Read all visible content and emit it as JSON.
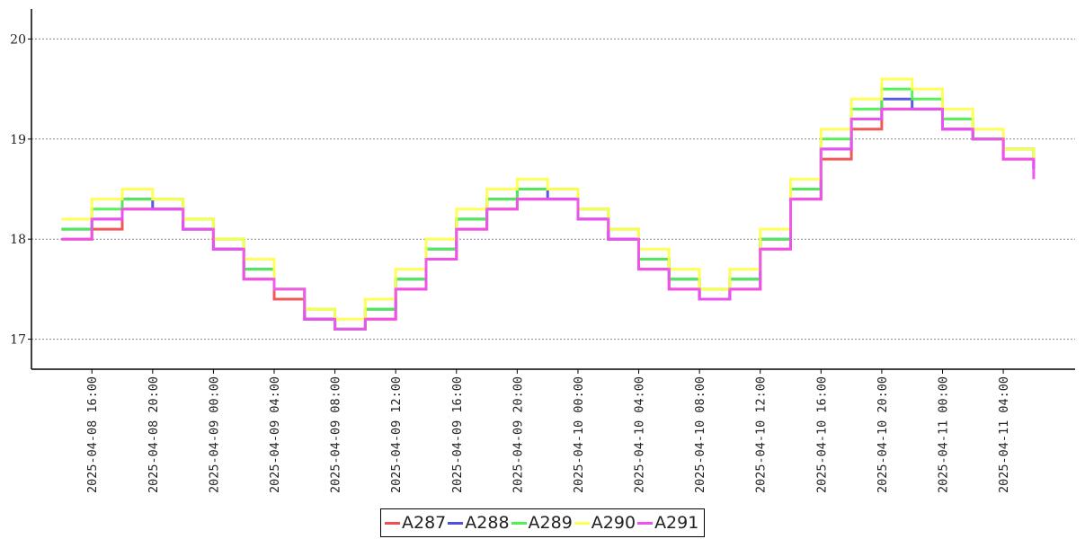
{
  "chart_data": {
    "type": "line",
    "step": true,
    "title": "",
    "xlabel": "",
    "ylabel": "",
    "x_start": "2025-04-08 13:30",
    "x_end": "2025-04-11 07:15",
    "x_tick_labels": [
      "2025-04-08 16:00",
      "2025-04-08 20:00",
      "2025-04-09 00:00",
      "2025-04-09 04:00",
      "2025-04-09 08:00",
      "2025-04-09 12:00",
      "2025-04-09 16:00",
      "2025-04-09 20:00",
      "2025-04-10 00:00",
      "2025-04-10 04:00",
      "2025-04-10 08:00",
      "2025-04-10 12:00",
      "2025-04-10 16:00",
      "2025-04-10 20:00",
      "2025-04-11 00:00",
      "2025-04-11 04:00"
    ],
    "y_ticks": [
      17,
      18,
      19,
      20
    ],
    "ylim": [
      16.7,
      20.3
    ],
    "grid": "horizontal dotted",
    "legend_position": "bottom-center",
    "x": [
      "2025-04-08 14:00",
      "2025-04-08 16:00",
      "2025-04-08 18:00",
      "2025-04-08 20:00",
      "2025-04-08 22:00",
      "2025-04-09 00:00",
      "2025-04-09 02:00",
      "2025-04-09 04:00",
      "2025-04-09 06:00",
      "2025-04-09 08:00",
      "2025-04-09 10:00",
      "2025-04-09 12:00",
      "2025-04-09 14:00",
      "2025-04-09 16:00",
      "2025-04-09 18:00",
      "2025-04-09 20:00",
      "2025-04-09 22:00",
      "2025-04-10 00:00",
      "2025-04-10 02:00",
      "2025-04-10 04:00",
      "2025-04-10 06:00",
      "2025-04-10 08:00",
      "2025-04-10 10:00",
      "2025-04-10 12:00",
      "2025-04-10 14:00",
      "2025-04-10 16:00",
      "2025-04-10 18:00",
      "2025-04-10 20:00",
      "2025-04-10 22:00",
      "2025-04-11 00:00",
      "2025-04-11 02:00",
      "2025-04-11 04:00",
      "2025-04-11 06:00"
    ],
    "series": [
      {
        "name": "A287",
        "color": "#f05050",
        "values": [
          18.0,
          18.1,
          18.3,
          18.3,
          18.1,
          17.9,
          17.6,
          17.4,
          17.2,
          17.1,
          17.2,
          17.5,
          17.8,
          18.1,
          18.3,
          18.4,
          18.4,
          18.2,
          18.0,
          17.7,
          17.5,
          17.4,
          17.5,
          17.9,
          18.4,
          18.8,
          19.1,
          19.3,
          19.3,
          19.1,
          19.0,
          18.8,
          18.7
        ]
      },
      {
        "name": "A288",
        "color": "#5050e0",
        "values": [
          18.1,
          18.2,
          18.4,
          18.3,
          18.1,
          17.9,
          17.7,
          17.5,
          17.2,
          17.1,
          17.3,
          17.6,
          17.9,
          18.2,
          18.4,
          18.5,
          18.4,
          18.2,
          18.0,
          17.8,
          17.6,
          17.4,
          17.6,
          18.0,
          18.5,
          18.9,
          19.2,
          19.4,
          19.3,
          19.1,
          19.0,
          18.9,
          18.7
        ]
      },
      {
        "name": "A289",
        "color": "#50f050",
        "values": [
          18.1,
          18.3,
          18.4,
          18.4,
          18.2,
          18.0,
          17.7,
          17.5,
          17.3,
          17.1,
          17.3,
          17.6,
          17.9,
          18.2,
          18.4,
          18.5,
          18.5,
          18.3,
          18.1,
          17.8,
          17.6,
          17.5,
          17.6,
          18.0,
          18.5,
          19.0,
          19.3,
          19.5,
          19.4,
          19.2,
          19.0,
          18.9,
          18.8
        ]
      },
      {
        "name": "A290",
        "color": "#ffff50",
        "values": [
          18.2,
          18.4,
          18.5,
          18.4,
          18.2,
          18.0,
          17.8,
          17.5,
          17.3,
          17.2,
          17.4,
          17.7,
          18.0,
          18.3,
          18.5,
          18.6,
          18.5,
          18.3,
          18.1,
          17.9,
          17.7,
          17.5,
          17.7,
          18.1,
          18.6,
          19.1,
          19.4,
          19.6,
          19.5,
          19.3,
          19.1,
          18.9,
          18.8
        ]
      },
      {
        "name": "A291",
        "color": "#f050f0",
        "values": [
          18.0,
          18.2,
          18.3,
          18.3,
          18.1,
          17.9,
          17.6,
          17.5,
          17.2,
          17.1,
          17.2,
          17.5,
          17.8,
          18.1,
          18.3,
          18.4,
          18.4,
          18.2,
          18.0,
          17.7,
          17.5,
          17.4,
          17.5,
          17.9,
          18.4,
          18.9,
          19.2,
          19.3,
          19.3,
          19.1,
          19.0,
          18.8,
          18.6
        ]
      }
    ]
  }
}
